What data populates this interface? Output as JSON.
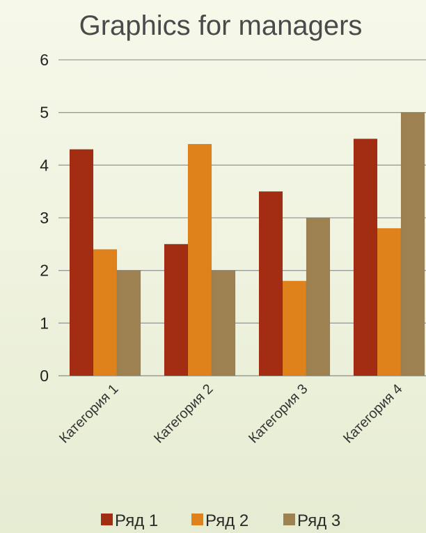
{
  "chart_data": {
    "type": "bar",
    "title": "Graphics for managers",
    "categories": [
      "Категория 1",
      "Категория 2",
      "Категория 3",
      "Категория 4"
    ],
    "series": [
      {
        "name": "Ряд 1",
        "values": [
          4.3,
          2.5,
          3.5,
          4.5
        ]
      },
      {
        "name": "Ряд 2",
        "values": [
          2.4,
          4.4,
          1.8,
          2.8
        ]
      },
      {
        "name": "Ряд 3",
        "values": [
          2.0,
          2.0,
          3.0,
          5.0
        ]
      }
    ],
    "ylim": [
      0,
      6
    ],
    "yticks": [
      0,
      1,
      2,
      3,
      4,
      5,
      6
    ],
    "grid": true,
    "legend_position": "bottom",
    "colors": [
      "#a32d12",
      "#e0821c",
      "#9e8150"
    ]
  }
}
